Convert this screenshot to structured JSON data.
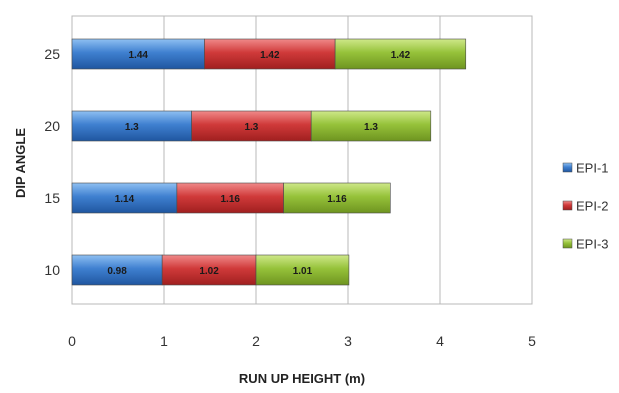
{
  "chart_data": {
    "type": "bar",
    "orientation": "horizontal",
    "stacked": true,
    "categories": [
      "10",
      "15",
      "20",
      "25"
    ],
    "series": [
      {
        "name": "EPI-1",
        "values": [
          0.98,
          1.14,
          1.3,
          1.44
        ],
        "labels": [
          "0.98",
          "1.14",
          "1.3",
          "1.44"
        ],
        "color": "#3a78c8"
      },
      {
        "name": "EPI-2",
        "values": [
          1.02,
          1.16,
          1.3,
          1.42
        ],
        "labels": [
          "1.02",
          "1.16",
          "1.3",
          "1.42"
        ],
        "color": "#cc3333"
      },
      {
        "name": "EPI-3",
        "values": [
          1.01,
          1.16,
          1.3,
          1.42
        ],
        "labels": [
          "1.01",
          "1.16",
          "1.3",
          "1.42"
        ],
        "color": "#8fbc2f"
      }
    ],
    "xlabel": "RUN UP HEIGHT (m)",
    "ylabel": "DIP ANGLE",
    "xlim": [
      0,
      5
    ],
    "xticks": [
      "0",
      "1",
      "2",
      "3",
      "4",
      "5"
    ],
    "grid": true,
    "legend_position": "right"
  }
}
